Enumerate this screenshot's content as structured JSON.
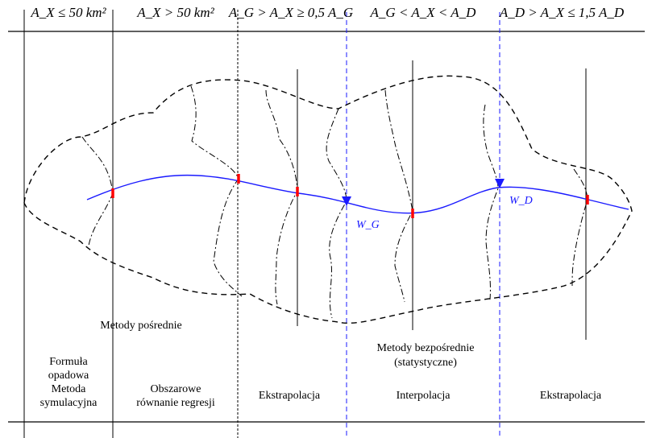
{
  "headers": {
    "col1": "A_X ≤ 50 km²",
    "col2": "A_X > 50 km²",
    "col3": "A_G > A_X ≥ 0,5 A_G",
    "col4": "A_G < A_X < A_D",
    "col5": "A_D > A_X ≤ 1,5 A_D"
  },
  "point_labels": {
    "wg": "W_G",
    "wd": "W_D"
  },
  "labels": {
    "indirect": "Metody pośrednie",
    "direct_line1": "Metody bezpośrednie",
    "direct_line2": "(statystyczne)",
    "col1_line1": "Formuła",
    "col1_line2": "opadowa",
    "col1_line3": "Metoda",
    "col1_line4": "symulacyjna",
    "col2_line1": "Obszarowe",
    "col2_line2": "równanie regresji",
    "col3": "Ekstrapolacja",
    "col4": "Interpolacja",
    "col5": "Ekstrapolacja"
  },
  "colors": {
    "river": "#1a1aff",
    "marker": "#ff0000",
    "line": "#000000"
  }
}
